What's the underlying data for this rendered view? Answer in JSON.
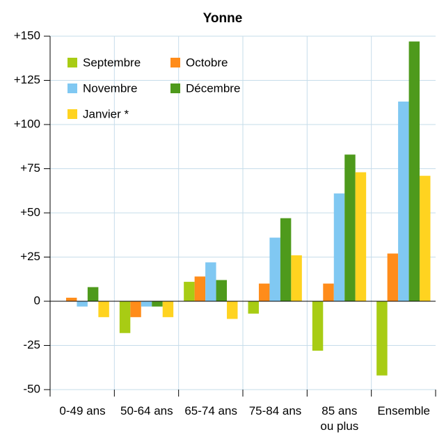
{
  "chart_data": {
    "type": "bar",
    "title": "Yonne",
    "categories": [
      "0-49 ans",
      "50-64 ans",
      "65-74 ans",
      "75-84 ans",
      "85 ans\nou plus",
      "Ensemble"
    ],
    "series": [
      {
        "name": "Septembre",
        "color": "#a8cc14",
        "values": [
          0,
          -18,
          11,
          -7,
          -28,
          -42
        ]
      },
      {
        "name": "Octobre",
        "color": "#ff8c1a",
        "values": [
          2,
          -9,
          14,
          10,
          10,
          27
        ]
      },
      {
        "name": "Novembre",
        "color": "#80c8f2",
        "values": [
          -3,
          -3,
          22,
          36,
          61,
          113
        ]
      },
      {
        "name": "Décembre",
        "color": "#4e9a1c",
        "values": [
          8,
          -3,
          12,
          47,
          83,
          147
        ]
      },
      {
        "name": "Janvier *",
        "color": "#ffd320",
        "values": [
          -9,
          -9,
          -10,
          26,
          73,
          71
        ]
      }
    ],
    "ylim": [
      -50,
      150
    ],
    "yticks": [
      -50,
      -25,
      0,
      {
        "value": 25,
        "label": "+25"
      },
      {
        "value": 50,
        "label": "+50"
      },
      {
        "value": 75,
        "label": "+75"
      },
      {
        "value": 100,
        "label": "+100"
      },
      {
        "value": 125,
        "label": "+125"
      },
      {
        "value": 150,
        "label": "+150"
      }
    ],
    "grid": true,
    "legend": "top-left"
  }
}
